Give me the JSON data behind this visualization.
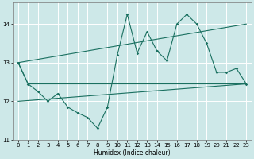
{
  "xlabel": "Humidex (Indice chaleur)",
  "background_color": "#cde8e8",
  "grid_color": "#ffffff",
  "line_color": "#1a7060",
  "xlim": [
    -0.5,
    23.5
  ],
  "ylim": [
    11,
    14.55
  ],
  "yticks": [
    11,
    12,
    13,
    14
  ],
  "xticks": [
    0,
    1,
    2,
    3,
    4,
    5,
    6,
    7,
    8,
    9,
    10,
    11,
    12,
    13,
    14,
    15,
    16,
    17,
    18,
    19,
    20,
    21,
    22,
    23
  ],
  "main_x": [
    0,
    1,
    2,
    3,
    4,
    5,
    6,
    7,
    8,
    9,
    10,
    11,
    12,
    13,
    14,
    15,
    16,
    17,
    18,
    19,
    20,
    21,
    22,
    23
  ],
  "main_y": [
    13.0,
    12.45,
    12.25,
    12.0,
    12.2,
    11.85,
    11.7,
    11.58,
    11.3,
    11.85,
    13.2,
    14.25,
    13.25,
    13.8,
    13.3,
    13.05,
    14.0,
    14.25,
    14.0,
    13.5,
    12.75,
    12.75,
    12.85,
    12.45
  ],
  "line1_x": [
    0,
    23
  ],
  "line1_y": [
    13.0,
    14.0
  ],
  "line2_x": [
    0,
    1,
    23
  ],
  "line2_y": [
    13.0,
    12.45,
    12.45
  ],
  "line3_x": [
    0,
    23
  ],
  "line3_y": [
    12.0,
    12.45
  ]
}
